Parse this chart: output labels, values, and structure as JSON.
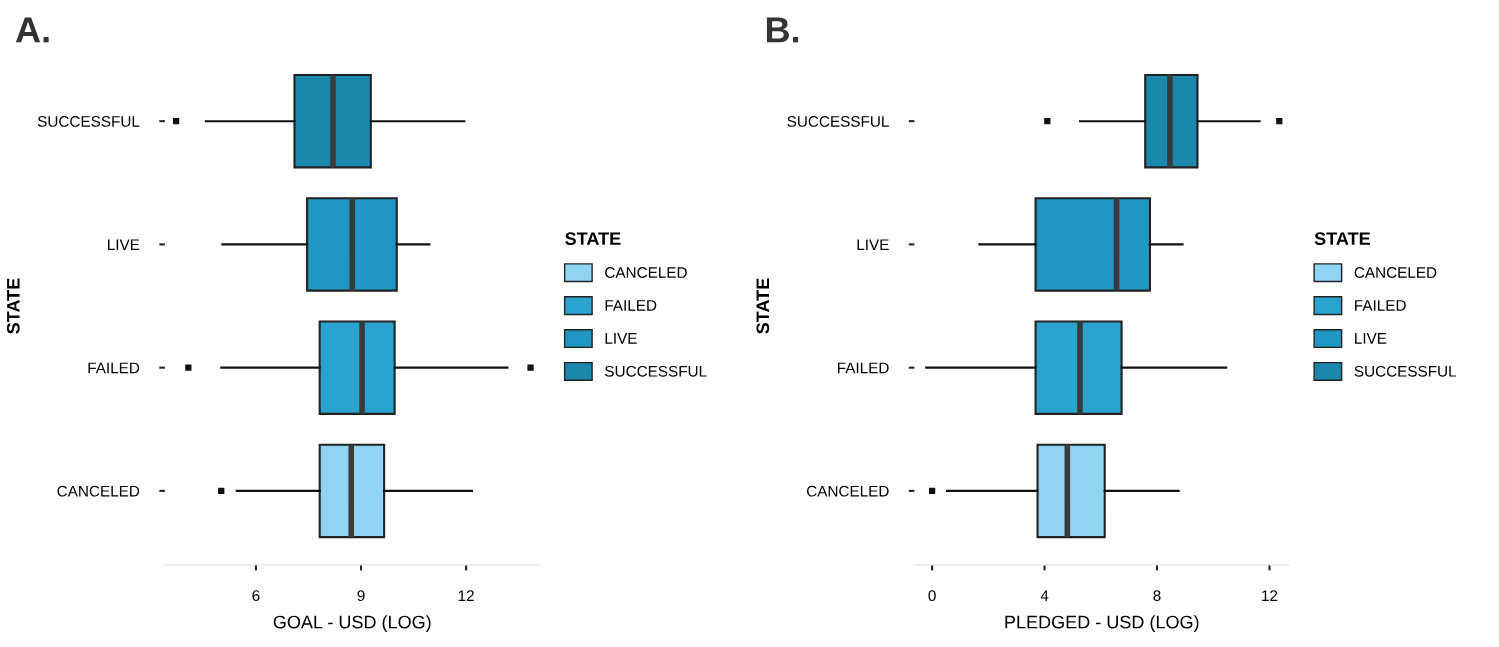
{
  "chart_data": [
    {
      "type": "box",
      "title": "A.",
      "xlabel": "GOAL - USD (LOG)",
      "ylabel": "STATE",
      "orientation": "horizontal",
      "categories": [
        "SUCCESSFUL",
        "LIVE",
        "FAILED",
        "CANCELED"
      ],
      "colors": [
        "#1a87ad",
        "#1f97c2",
        "#2aa3cf",
        "#8fd4f2"
      ],
      "boxes": [
        {
          "low": 4.57,
          "q1": 7.1,
          "median": 8.2,
          "q3": 9.28,
          "high": 11.95,
          "outliers": [
            3.72
          ]
        },
        {
          "low": 5.04,
          "q1": 7.46,
          "median": 8.75,
          "q3": 10.02,
          "high": 10.95
        },
        {
          "low": 5.01,
          "q1": 7.82,
          "median": 9.03,
          "q3": 9.96,
          "high": 13.18,
          "outliers": [
            4.07,
            13.84
          ]
        },
        {
          "low": 5.45,
          "q1": 7.82,
          "median": 8.72,
          "q3": 9.66,
          "high": 12.17,
          "outliers": [
            5.01
          ]
        }
      ],
      "xlim": [
        3.4,
        14.1
      ],
      "xticks": [
        6,
        9,
        12
      ],
      "legend_title": "STATE"
    },
    {
      "type": "box",
      "title": "B.",
      "xlabel": "PLEDGED - USD (LOG)",
      "ylabel": "STATE",
      "orientation": "horizontal",
      "categories": [
        "SUCCESSFUL",
        "LIVE",
        "FAILED",
        "CANCELED"
      ],
      "colors": [
        "#1a87ad",
        "#1f97c2",
        "#2aa3cf",
        "#8fd4f2"
      ],
      "boxes": [
        {
          "low": 5.26,
          "q1": 7.58,
          "median": 8.46,
          "q3": 9.44,
          "high": 11.65,
          "outliers": [
            4.1,
            12.35
          ]
        },
        {
          "low": 1.68,
          "q1": 3.68,
          "median": 6.56,
          "q3": 7.75,
          "high": 8.91
        },
        {
          "low": -0.21,
          "q1": 3.68,
          "median": 5.26,
          "q3": 6.74,
          "high": 10.46
        },
        {
          "low": 0.53,
          "q1": 3.75,
          "median": 4.81,
          "q3": 6.14,
          "high": 8.77,
          "outliers": [
            0.0
          ]
        }
      ],
      "xlim": [
        -0.63,
        12.7
      ],
      "xticks": [
        0,
        4,
        8,
        12
      ],
      "legend_title": "STATE"
    }
  ]
}
